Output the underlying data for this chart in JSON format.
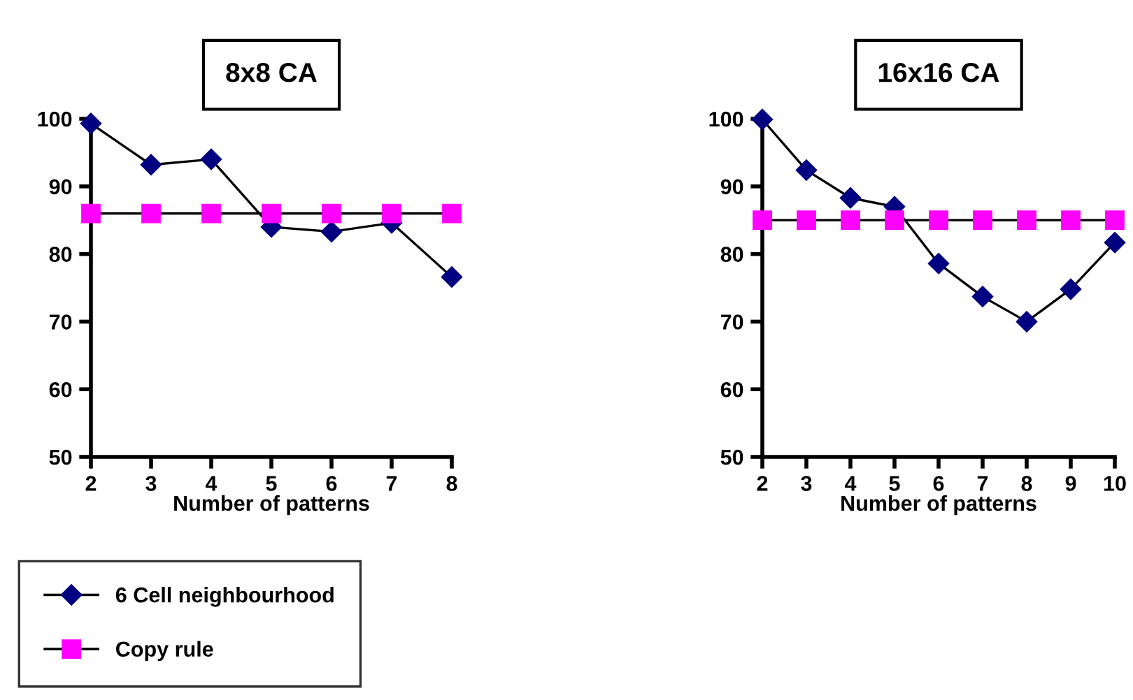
{
  "chart_data": [
    {
      "type": "line",
      "title": "8x8 CA",
      "xlabel": "Number of patterns",
      "categories": [
        "2",
        "3",
        "4",
        "5",
        "6",
        "7",
        "8"
      ],
      "ylim": [
        50,
        100
      ],
      "yticks": [
        50,
        60,
        70,
        80,
        90,
        100
      ],
      "grid": false,
      "legend": "bottom left",
      "series": [
        {
          "name": "6 Cell neighbourhood",
          "color": "#000080",
          "marker": "diamond",
          "values": [
            99.3,
            93.2,
            94.0,
            84.0,
            83.3,
            84.6,
            76.6
          ]
        },
        {
          "name": "Copy rule",
          "color": "#ff00ff",
          "marker": "square",
          "values": [
            86.0,
            86.0,
            86.0,
            86.0,
            86.0,
            86.0,
            86.0
          ]
        }
      ]
    },
    {
      "type": "line",
      "title": "16x16 CA",
      "xlabel": "Number of patterns",
      "categories": [
        "2",
        "3",
        "4",
        "5",
        "6",
        "7",
        "8",
        "9",
        "10"
      ],
      "ylim": [
        50,
        100
      ],
      "yticks": [
        50,
        60,
        70,
        80,
        90,
        100
      ],
      "grid": false,
      "series": [
        {
          "color": "#000080",
          "marker": "diamond",
          "values": [
            99.9,
            92.4,
            88.3,
            87.0,
            78.6,
            73.7,
            70.0,
            74.8,
            81.7
          ]
        },
        {
          "color": "#ff00ff",
          "marker": "square",
          "values": [
            85.0,
            85.0,
            85.0,
            85.0,
            85.0,
            85.0,
            85.0,
            85.0,
            85.0
          ]
        }
      ]
    }
  ]
}
